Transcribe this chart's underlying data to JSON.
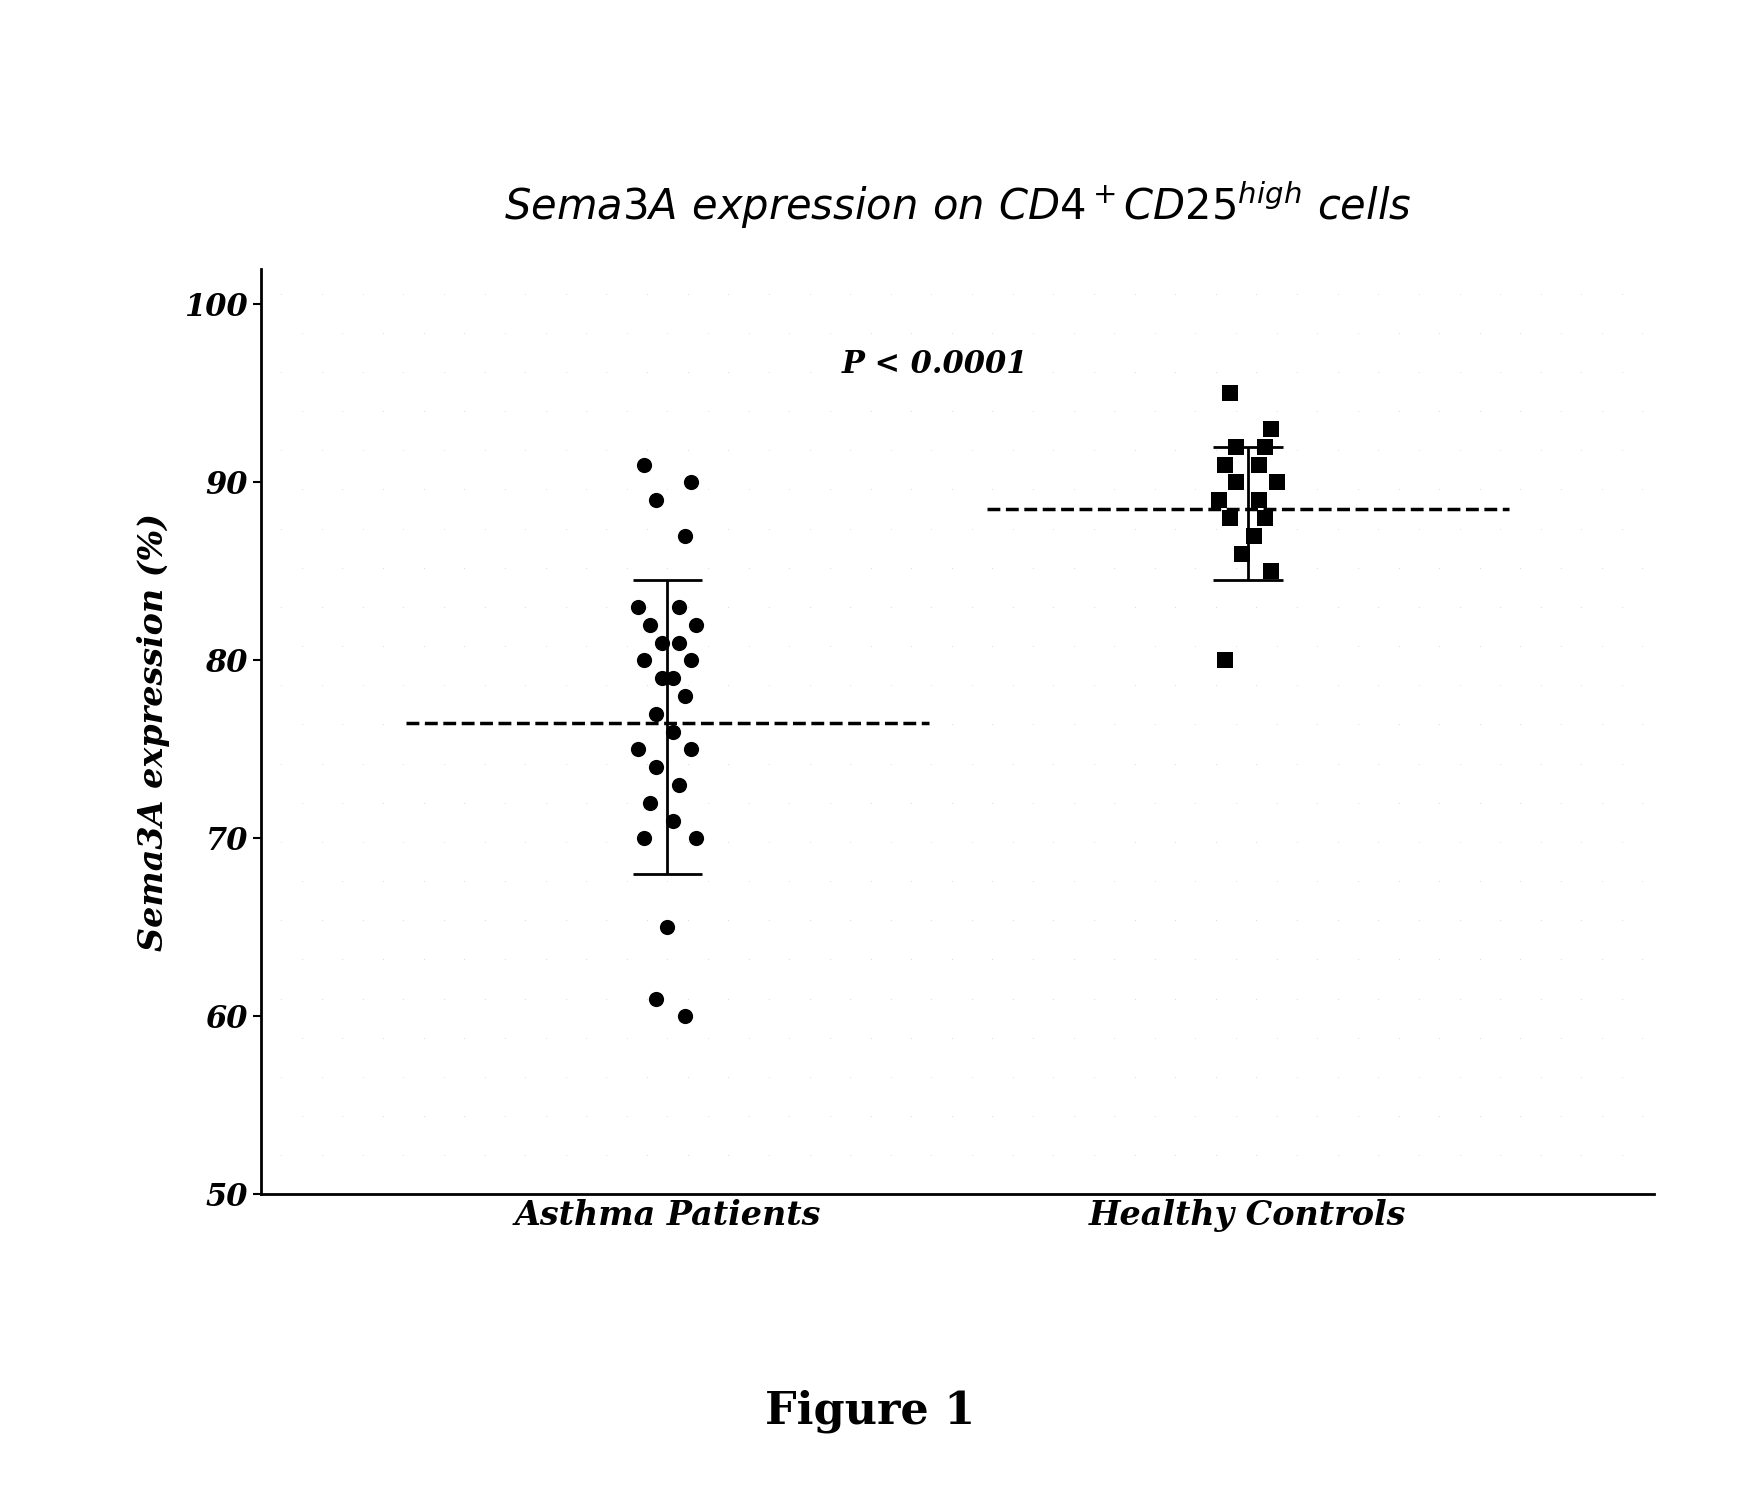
{
  "title": "Sema3A expression on CD4$^+$CD25$^{high}$ cells",
  "ylabel": "Sema3A expression (%)",
  "xlabel_labels": [
    "Asthma Patients",
    "Healthy Controls"
  ],
  "ylim": [
    50,
    102
  ],
  "yticks": [
    50,
    60,
    70,
    80,
    90,
    100
  ],
  "p_value_text": "P < 0.0001",
  "figure_label": "Figure 1",
  "asthma_data": [
    91,
    90,
    89,
    87,
    83,
    83,
    82,
    82,
    81,
    81,
    80,
    80,
    79,
    79,
    78,
    77,
    76,
    75,
    75,
    74,
    73,
    72,
    71,
    70,
    70,
    65,
    61,
    60
  ],
  "asthma_x_jitter": [
    -0.04,
    0.04,
    -0.02,
    0.03,
    -0.05,
    0.02,
    -0.03,
    0.05,
    -0.01,
    0.02,
    0.04,
    -0.04,
    0.01,
    -0.01,
    0.03,
    -0.02,
    0.01,
    -0.05,
    0.04,
    -0.02,
    0.02,
    -0.03,
    0.01,
    -0.04,
    0.05,
    0.0,
    -0.02,
    0.03
  ],
  "healthy_data": [
    95,
    93,
    92,
    92,
    91,
    91,
    90,
    90,
    89,
    89,
    88,
    88,
    87,
    86,
    85,
    80
  ],
  "healthy_x_jitter": [
    -0.03,
    0.04,
    -0.02,
    0.03,
    -0.04,
    0.02,
    -0.02,
    0.05,
    -0.05,
    0.02,
    0.03,
    -0.03,
    0.01,
    -0.01,
    0.04,
    -0.04
  ],
  "asthma_mean": 76.5,
  "asthma_sd_upper": 84.5,
  "asthma_sd_lower": 68.0,
  "healthy_mean": 88.5,
  "healthy_sd_upper": 92.0,
  "healthy_sd_lower": 84.5,
  "bg_color": "#ffffff",
  "dot_color": "#000000",
  "dashed_color": "#000000",
  "errorbar_color": "#000000",
  "title_fontsize": 30,
  "label_fontsize": 24,
  "tick_fontsize": 22,
  "annot_fontsize": 22,
  "figure_label_fontsize": 32
}
